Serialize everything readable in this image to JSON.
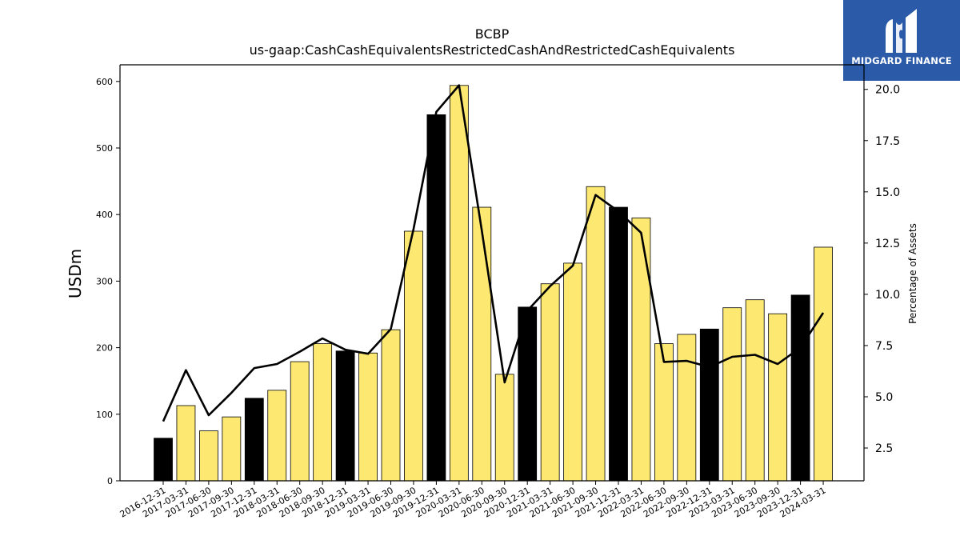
{
  "brand": {
    "name": "MIDGARD FINANCE",
    "bg_color": "#2a5aa8"
  },
  "chart_data": {
    "type": "bar",
    "title": "BCBP",
    "subtitle": "us-gaap:CashCashEquivalentsRestrictedCashAndRestrictedCashEquivalents",
    "ylabel": "USDm",
    "y2label": "Percentage of Assets",
    "ylim": [
      0,
      625
    ],
    "y2lim": [
      0.9,
      21.2
    ],
    "yticks": [
      0,
      100,
      200,
      300,
      400,
      500,
      600
    ],
    "y2ticks": [
      "2.5",
      "5.0",
      "7.5",
      "10.0",
      "12.5",
      "15.0",
      "17.5",
      "20.0"
    ],
    "categories": [
      "2016-12-31",
      "2017-03-31",
      "2017-06-30",
      "2017-09-30",
      "2017-12-31",
      "2018-03-31",
      "2018-06-30",
      "2018-09-30",
      "2018-12-31",
      "2019-03-31",
      "2019-06-30",
      "2019-09-30",
      "2019-12-31",
      "2020-03-31",
      "2020-06-30",
      "2020-09-30",
      "2020-12-31",
      "2021-03-31",
      "2021-06-30",
      "2021-09-30",
      "2021-12-31",
      "2022-03-31",
      "2022-06-30",
      "2022-09-30",
      "2022-12-31",
      "2023-03-31",
      "2023-06-30",
      "2023-09-30",
      "2023-12-31",
      "2024-03-31"
    ],
    "series": [
      {
        "values": [
          64,
          113,
          75,
          96,
          124,
          136,
          179,
          206,
          195,
          192,
          227,
          375,
          550,
          594,
          411,
          160,
          261,
          296,
          327,
          442,
          411,
          395,
          206,
          220,
          228,
          260,
          272,
          251,
          279,
          351
        ],
        "colors_by_quarter": {
          "Q4": "#000000",
          "other": "#fde972"
        }
      },
      {
        "axis": "secondary",
        "values": [
          3.8,
          6.3,
          4.1,
          5.2,
          6.4,
          6.6,
          7.2,
          7.85,
          7.3,
          7.1,
          8.3,
          13.2,
          18.9,
          20.2,
          13.1,
          5.7,
          9.2,
          10.4,
          11.4,
          14.85,
          14.05,
          13.0,
          6.7,
          6.75,
          6.45,
          6.95,
          7.05,
          6.6,
          7.4,
          9.1
        ],
        "color": "#000000"
      }
    ],
    "grid": false,
    "legend": "none"
  }
}
